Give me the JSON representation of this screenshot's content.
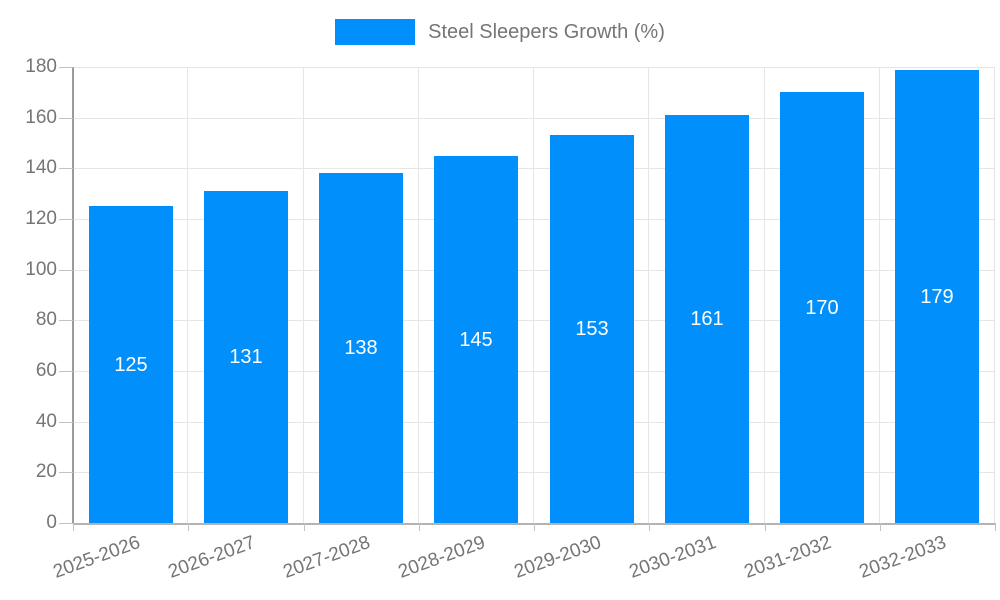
{
  "chart_data": {
    "type": "bar",
    "title": "",
    "legend": {
      "position": "top"
    },
    "categories": [
      "2025-2026",
      "2026-2027",
      "2027-2028",
      "2028-2029",
      "2029-2030",
      "2030-2031",
      "2031-2032",
      "2032-2033"
    ],
    "series": [
      {
        "name": "Steel Sleepers Growth (%)",
        "values": [
          125,
          131,
          138,
          145,
          153,
          161,
          170,
          179
        ]
      }
    ],
    "ylabel": "",
    "xlabel": "",
    "ylim": [
      0,
      180
    ],
    "yticks": [
      0,
      20,
      40,
      60,
      80,
      100,
      120,
      140,
      160,
      180
    ],
    "grid": true,
    "value_labels": "centered-inside-bars",
    "colors": {
      "bar": "#008ffb",
      "axis_text": "#757575",
      "gridline": "#e6e6e6",
      "y_axis_line": "#9b9b9b",
      "x_axis_line": "#b3b3b3",
      "tick": "#c2c2c2",
      "value_label": "#ffffff"
    }
  }
}
